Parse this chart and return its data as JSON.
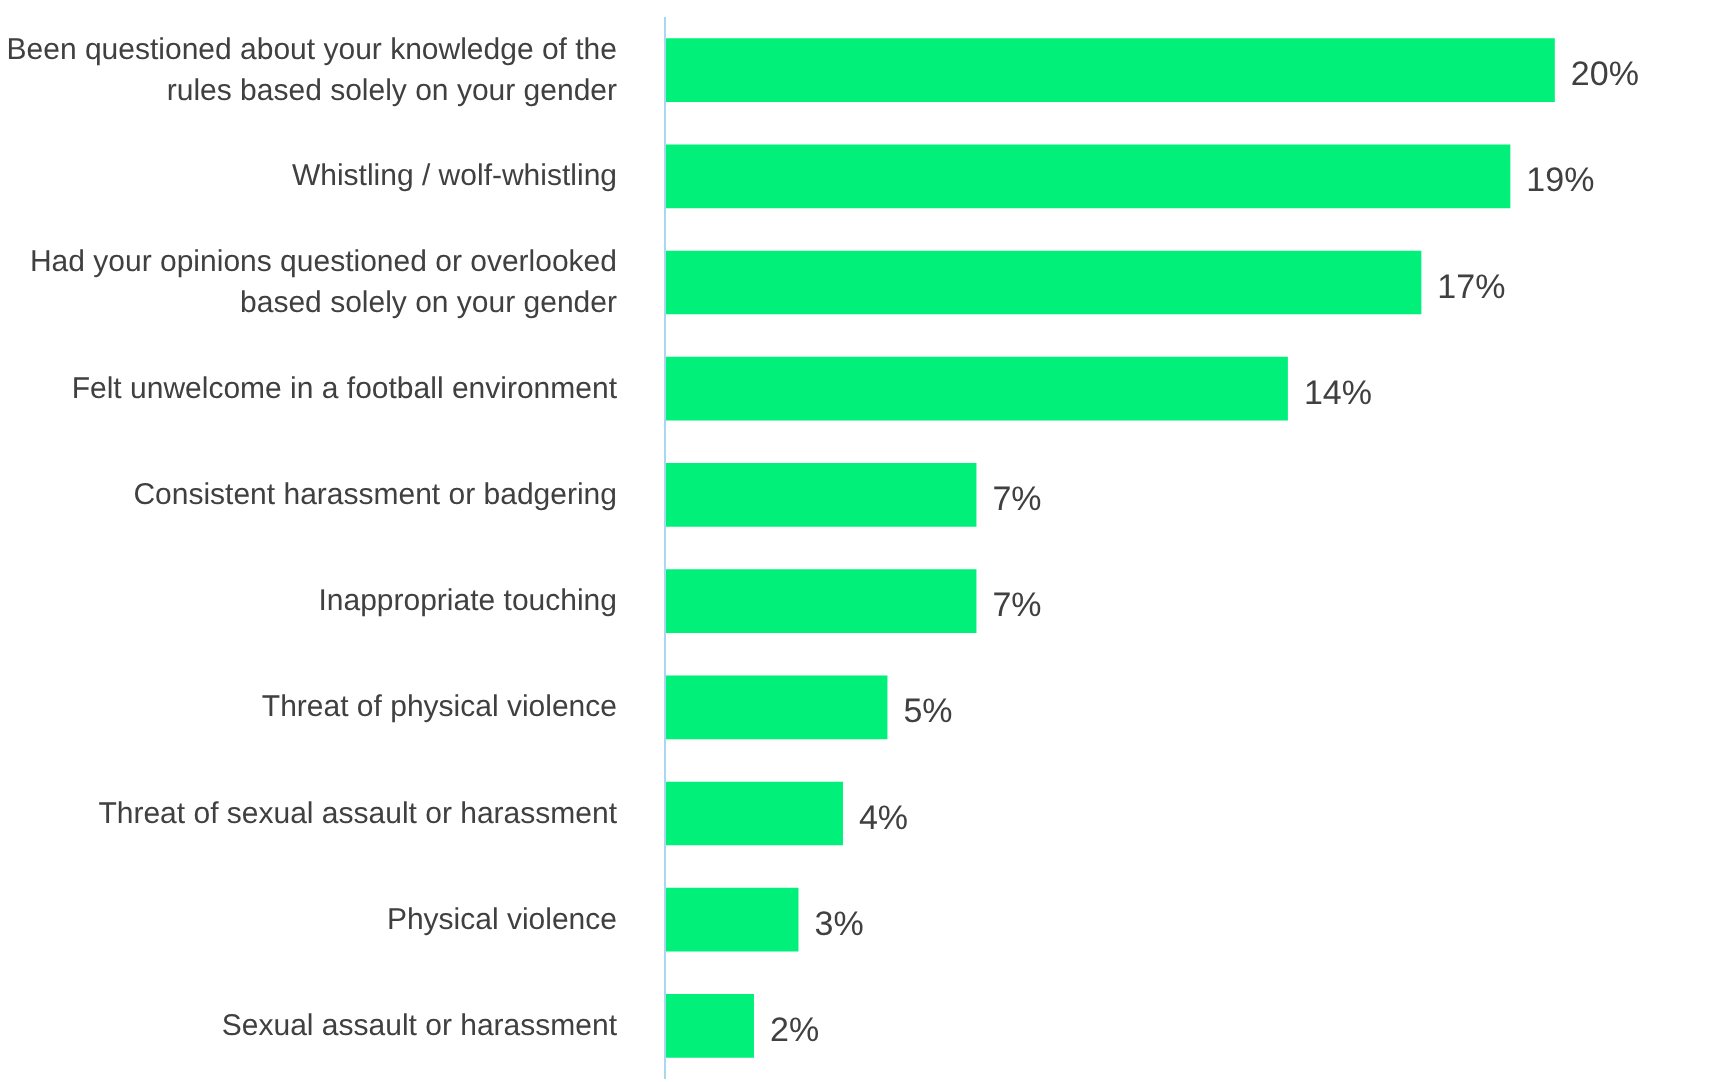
{
  "chart_data": {
    "type": "bar",
    "orientation": "horizontal",
    "categories": [
      "Been questioned about your knowledge of the rules based solely on your gender",
      "Whistling / wolf-whistling",
      "Had your opinions questioned or overlooked based solely on your gender",
      "Felt unwelcome in a football environment",
      "Consistent harassment or badgering",
      "Inappropriate touching",
      "Threat of physical violence",
      "Threat of sexual assault or harassment",
      "Physical violence",
      "Sexual assault or harassment"
    ],
    "values": [
      20,
      19,
      17,
      14,
      7,
      7,
      5,
      4,
      3,
      2
    ],
    "value_labels": [
      "20%",
      "19%",
      "17%",
      "14%",
      "7%",
      "7%",
      "5%",
      "4%",
      "3%",
      "2%"
    ],
    "color": "#00f07a",
    "grid": false
  }
}
